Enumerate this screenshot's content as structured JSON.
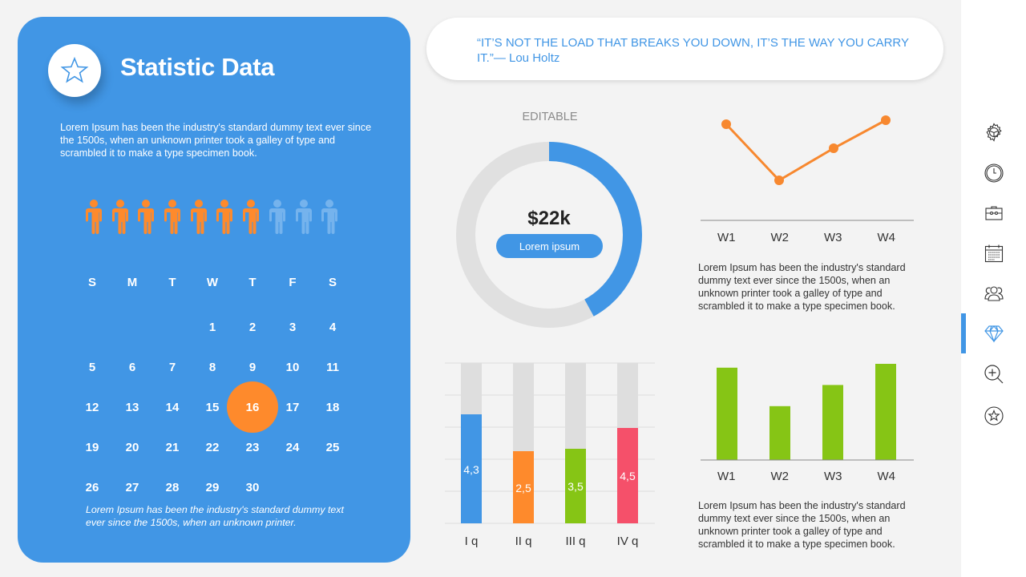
{
  "left_panel": {
    "title": "Statistic Data",
    "badge_icon": "star-icon",
    "intro": "Lorem Ipsum has been the industry's standard dummy text ever since the 1500s, when an unknown printer took a galley of type and scrambled it to make a type specimen book.",
    "people": {
      "total": 10,
      "highlighted": 7,
      "highlight_color": "#fe8a2c",
      "dim_color": "#75b3ed"
    },
    "calendar": {
      "weekdays": [
        "S",
        "M",
        "T",
        "W",
        "T",
        "F",
        "S"
      ],
      "start_offset": 3,
      "days_in_month": 30,
      "selected_day": "16",
      "days": [
        "1",
        "2",
        "3",
        "4",
        "5",
        "6",
        "7",
        "8",
        "9",
        "10",
        "11",
        "12",
        "13",
        "14",
        "15",
        "16",
        "17",
        "18",
        "19",
        "20",
        "21",
        "22",
        "23",
        "24",
        "25",
        "26",
        "27",
        "28",
        "29",
        "30"
      ]
    },
    "footnote": "Lorem Ipsum has been the industry's standard dummy text ever since the 1500s, when an unknown printer."
  },
  "quote": {
    "text": "“IT’S NOT THE LOAD THAT BREAKS YOU DOWN, IT’S THE WAY YOU CARRY IT.”— Lou Holtz"
  },
  "donut": {
    "label": "EDITABLE",
    "value": "$22k",
    "pill_label": "Lorem ipsum",
    "percent": 42,
    "color": "#4196e5",
    "track_color": "#e0e0e0"
  },
  "line_panel": {
    "description": "Lorem Ipsum has been the industry's standard dummy text ever since the 1500s, when an unknown printer took a galley of type and scrambled it to make a type specimen book."
  },
  "green_panel": {
    "description": "Lorem Ipsum has been the industry's standard dummy text ever since the 1500s, when an unknown printer took a galley of type and scrambled it to make a type specimen book."
  },
  "chart_data": [
    {
      "type": "pie",
      "title": "EDITABLE",
      "center_label": "$22k",
      "subtitle": "Lorem ipsum",
      "values": [
        42,
        58
      ],
      "colors": [
        "#4196e5",
        "#e0e0e0"
      ]
    },
    {
      "type": "line",
      "categories": [
        "W1",
        "W2",
        "W3",
        "W4"
      ],
      "values": [
        3.4,
        2.0,
        2.8,
        3.5
      ],
      "color": "#f7882f",
      "xlabel": "",
      "ylabel": "",
      "ylim": [
        0,
        4
      ],
      "grid": false
    },
    {
      "type": "bar",
      "categories": [
        "I q",
        "II q",
        "III q",
        "IV q"
      ],
      "values": [
        4.3,
        2.5,
        3.5,
        4.5
      ],
      "value_labels": [
        "4,3",
        "2,5",
        "3,5",
        "4,5"
      ],
      "colors": [
        "#4196e5",
        "#fe8a2c",
        "#86c515",
        "#f5506a"
      ],
      "background_bar_color": "#dedede",
      "ylim": [
        0,
        5
      ],
      "grid": true
    },
    {
      "type": "bar",
      "categories": [
        "W1",
        "W2",
        "W3",
        "W4"
      ],
      "values": [
        4.8,
        2.8,
        3.9,
        5.0
      ],
      "color": "#86c515",
      "ylim": [
        0,
        5
      ],
      "grid": false
    }
  ],
  "sidebar": {
    "items": [
      {
        "icon": "steering-gear-icon",
        "active": false
      },
      {
        "icon": "clock-icon",
        "active": false
      },
      {
        "icon": "briefcase-icon",
        "active": false
      },
      {
        "icon": "calendar-icon",
        "active": false
      },
      {
        "icon": "users-icon",
        "active": false
      },
      {
        "icon": "diamond-icon",
        "active": true
      },
      {
        "icon": "zoom-in-icon",
        "active": false
      },
      {
        "icon": "star-circle-icon",
        "active": false
      }
    ],
    "accent": "#4196e5"
  }
}
